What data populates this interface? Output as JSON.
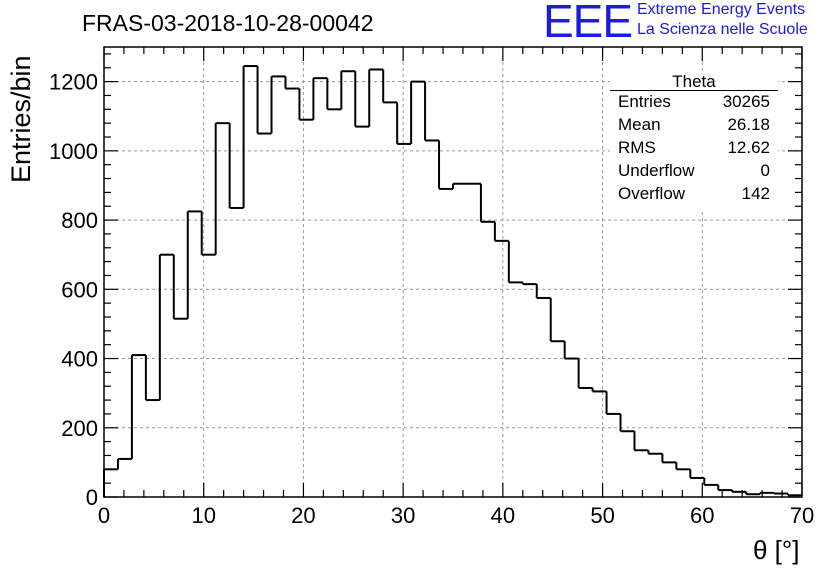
{
  "title": "FRAS-03-2018-10-28-00042",
  "logo": {
    "mark": "EEE",
    "line1": "Extreme Energy Events",
    "line2": "La Scienza nelle Scuole"
  },
  "colors": {
    "logo": "#1a1ae6",
    "histogram_line": "#000000",
    "grid": "#9a9a9a",
    "frame": "#000000"
  },
  "stats": {
    "title": "Theta",
    "rows": [
      {
        "key": "Entries",
        "value": "30265"
      },
      {
        "key": "Mean",
        "value": "26.18"
      },
      {
        "key": "RMS",
        "value": "12.62"
      },
      {
        "key": "Underflow",
        "value": "0"
      },
      {
        "key": "Overflow",
        "value": "142"
      }
    ]
  },
  "chart_data": {
    "type": "bar",
    "style": "step-histogram",
    "title": "FRAS-03-2018-10-28-00042",
    "xlabel": "θ [°]",
    "ylabel": "Entries/bin",
    "xlim": [
      0,
      70
    ],
    "ylim": [
      0,
      1300
    ],
    "bin_width": 1.4,
    "bin_start": 0,
    "grid": true,
    "legend": "top-right stats box",
    "x_ticks": [
      0,
      10,
      20,
      30,
      40,
      50,
      60,
      70
    ],
    "x_tick_labels": [
      "0",
      "10",
      "20",
      "30",
      "40",
      "50",
      "60",
      "70"
    ],
    "y_ticks": [
      0,
      200,
      400,
      600,
      800,
      1000,
      1200
    ],
    "y_tick_labels": [
      "0",
      "200",
      "400",
      "600",
      "800",
      "1000",
      "1200"
    ],
    "values": [
      80,
      110,
      410,
      280,
      700,
      515,
      825,
      700,
      1080,
      835,
      1245,
      1050,
      1215,
      1180,
      1090,
      1210,
      1120,
      1230,
      1070,
      1235,
      1140,
      1020,
      1200,
      1030,
      890,
      905,
      905,
      795,
      740,
      620,
      615,
      575,
      450,
      400,
      315,
      305,
      240,
      190,
      135,
      125,
      100,
      80,
      55,
      35,
      20,
      15,
      8,
      12,
      10,
      5
    ]
  }
}
